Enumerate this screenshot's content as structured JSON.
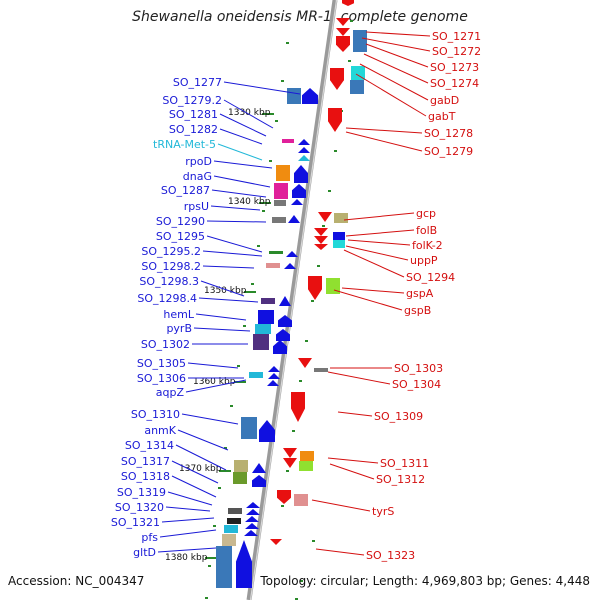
{
  "title": "Shewanella oneidensis MR-1, complete genome",
  "accession": "Accession: NC_004347",
  "stats": "Topology: circular; Length: 4,969,803 bp; Genes: 4,448",
  "colors": {
    "left_label": "#1a1ad6",
    "right_label": "#d41010",
    "trna_label": "#22b8d8",
    "backbone": "#808080",
    "left_arrow": "#1010e0",
    "right_arrow": "#e81010"
  },
  "scale_labels": [
    "1330 kbp",
    "1340 kbp",
    "1350 kbp",
    "1360 kbp",
    "1370 kbp",
    "1380 kbp"
  ],
  "left_genes": [
    "SO_1277",
    "SO_1279.2",
    "SO_1281",
    "SO_1282",
    "tRNA-Met-5",
    "rpoD",
    "dnaG",
    "SO_1287",
    "rpsU",
    "SO_1290",
    "SO_1295",
    "SO_1295.2",
    "SO_1298.2",
    "SO_1298.3",
    "SO_1298.4",
    "hemL",
    "pyrB",
    "SO_1302",
    "SO_1305",
    "SO_1306",
    "aqpZ",
    "SO_1310",
    "anmK",
    "SO_1314",
    "SO_1317",
    "SO_1318",
    "SO_1319",
    "SO_1320",
    "SO_1321",
    "pfs",
    "gltD"
  ],
  "right_genes": [
    "SO_1271",
    "SO_1272",
    "SO_1273",
    "SO_1274",
    "gabD",
    "gabT",
    "SO_1278",
    "SO_1279",
    "gcp",
    "folB",
    "folK-2",
    "uppP",
    "SO_1294",
    "gspA",
    "gspB",
    "SO_1303",
    "SO_1304",
    "SO_1309",
    "SO_1311",
    "SO_1312",
    "tyrS",
    "SO_1323"
  ]
}
